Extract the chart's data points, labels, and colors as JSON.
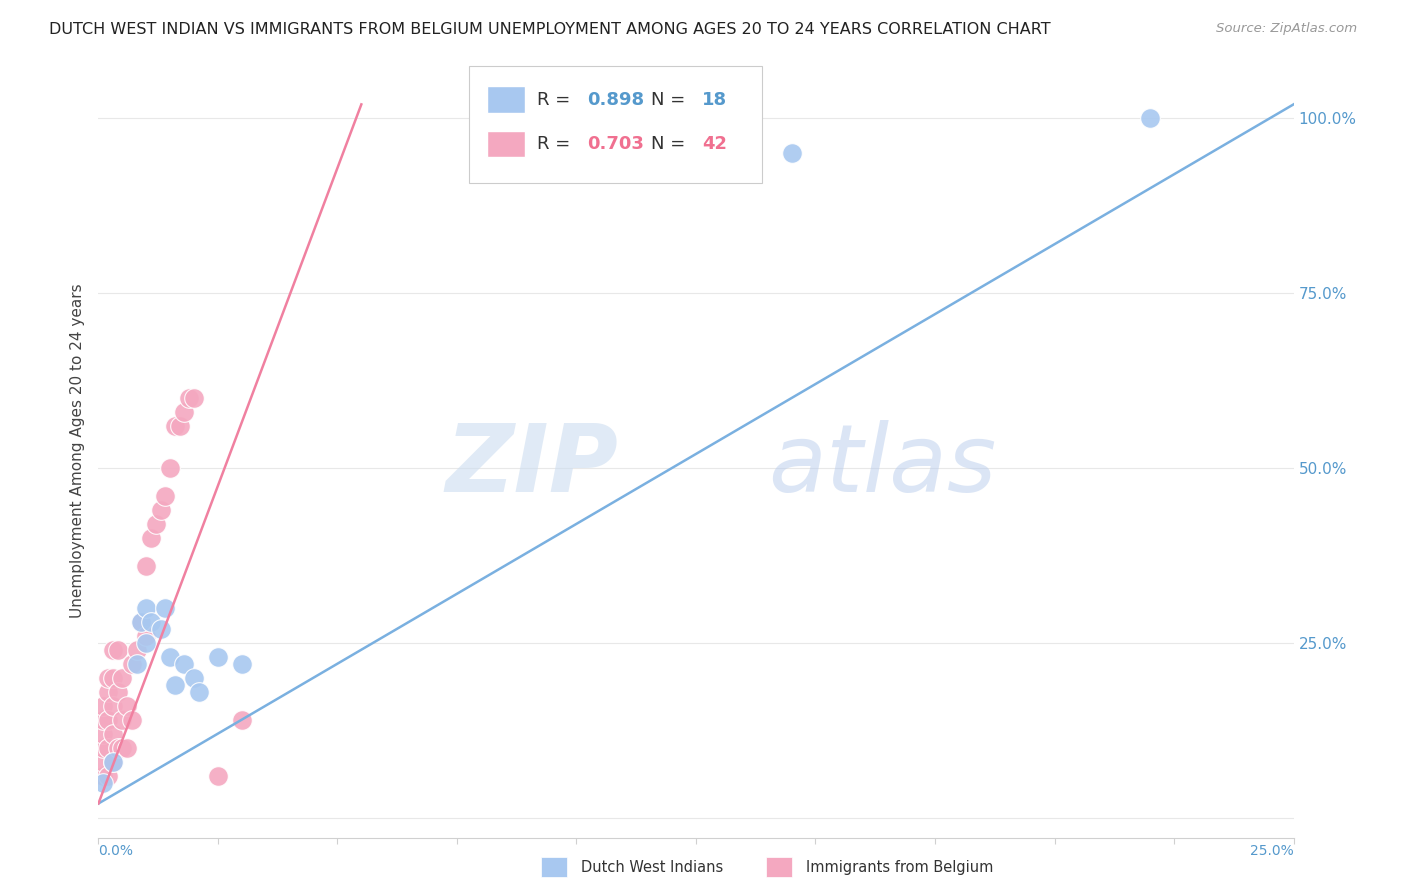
{
  "title": "DUTCH WEST INDIAN VS IMMIGRANTS FROM BELGIUM UNEMPLOYMENT AMONG AGES 20 TO 24 YEARS CORRELATION CHART",
  "source": "Source: ZipAtlas.com",
  "ylabel": "Unemployment Among Ages 20 to 24 years",
  "watermark_zip": "ZIP",
  "watermark_atlas": "atlas",
  "xmin": 0.0,
  "xmax": 0.25,
  "ymin": -0.03,
  "ymax": 1.08,
  "blue_R": 0.898,
  "blue_N": 18,
  "pink_R": 0.703,
  "pink_N": 42,
  "blue_color": "#a8c8f0",
  "pink_color": "#f4a8c0",
  "blue_line_color": "#7ab0e0",
  "pink_line_color": "#f080a0",
  "blue_dots_x": [
    0.001,
    0.003,
    0.008,
    0.009,
    0.01,
    0.01,
    0.011,
    0.013,
    0.014,
    0.015,
    0.016,
    0.018,
    0.02,
    0.021,
    0.025,
    0.03,
    0.145,
    0.22
  ],
  "blue_dots_y": [
    0.05,
    0.08,
    0.22,
    0.28,
    0.25,
    0.3,
    0.28,
    0.27,
    0.3,
    0.23,
    0.19,
    0.22,
    0.2,
    0.18,
    0.23,
    0.22,
    0.95,
    1.0
  ],
  "pink_dots_x": [
    0.001,
    0.001,
    0.001,
    0.001,
    0.001,
    0.001,
    0.002,
    0.002,
    0.002,
    0.002,
    0.002,
    0.003,
    0.003,
    0.003,
    0.003,
    0.003,
    0.004,
    0.004,
    0.004,
    0.005,
    0.005,
    0.005,
    0.006,
    0.006,
    0.007,
    0.007,
    0.008,
    0.009,
    0.01,
    0.01,
    0.011,
    0.012,
    0.013,
    0.014,
    0.015,
    0.016,
    0.017,
    0.018,
    0.019,
    0.02,
    0.025,
    0.03
  ],
  "pink_dots_y": [
    0.06,
    0.08,
    0.1,
    0.12,
    0.14,
    0.16,
    0.06,
    0.1,
    0.14,
    0.18,
    0.2,
    0.08,
    0.12,
    0.16,
    0.2,
    0.24,
    0.1,
    0.18,
    0.24,
    0.1,
    0.14,
    0.2,
    0.1,
    0.16,
    0.14,
    0.22,
    0.24,
    0.28,
    0.26,
    0.36,
    0.4,
    0.42,
    0.44,
    0.46,
    0.5,
    0.56,
    0.56,
    0.58,
    0.6,
    0.6,
    0.06,
    0.14
  ],
  "blue_line_x": [
    0.0,
    0.25
  ],
  "blue_line_y": [
    0.02,
    1.02
  ],
  "pink_line_x": [
    0.0,
    0.055
  ],
  "pink_line_y": [
    0.02,
    1.02
  ],
  "legend_label_blue": "Dutch West Indians",
  "legend_label_pink": "Immigrants from Belgium",
  "grid_color": "#e8e8e8",
  "background_color": "#ffffff"
}
